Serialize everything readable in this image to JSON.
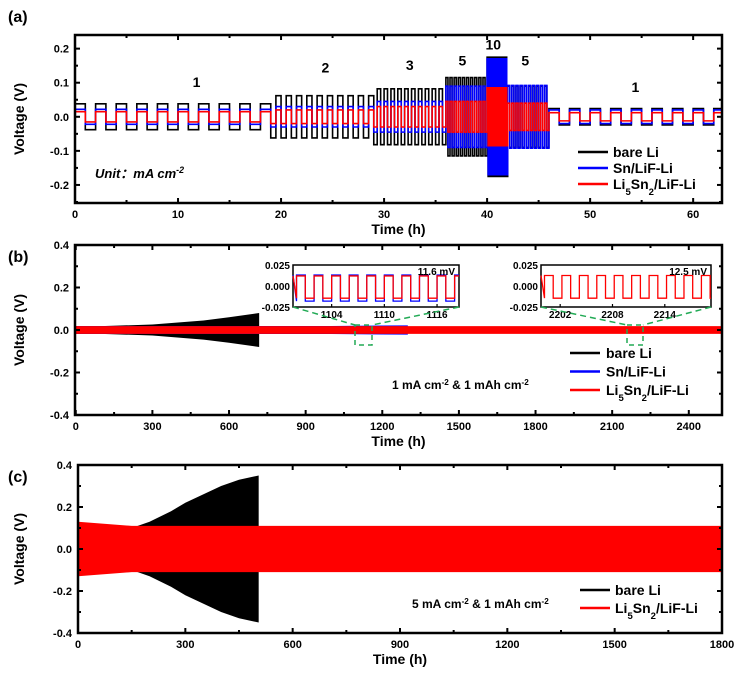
{
  "chart_data": [
    {
      "panel": "(a)",
      "type": "line",
      "xlabel": "Time (h)",
      "ylabel": "Voltage (V)",
      "xlim": [
        0,
        62.8
      ],
      "ylim": [
        -0.253,
        0.24
      ],
      "xticks": [
        0,
        10,
        20,
        30,
        40,
        50,
        60
      ],
      "xtick_labels": [
        "0",
        "10",
        "20",
        "30",
        "40",
        "50",
        "60"
      ],
      "yticks": [
        -0.2,
        -0.1,
        0.0,
        0.1,
        0.2
      ],
      "ytick_labels": [
        "-0.2",
        "-0.1",
        "0.0",
        "0.1",
        "0.2"
      ],
      "current_steps_mA_cm2": [
        {
          "start": 0,
          "end": 19,
          "current": 1
        },
        {
          "start": 19,
          "end": 29,
          "current": 2
        },
        {
          "start": 29,
          "end": 36,
          "current": 3
        },
        {
          "start": 36,
          "end": 40,
          "current": 5
        },
        {
          "start": 40,
          "end": 42,
          "current": 10
        },
        {
          "start": 42,
          "end": 46,
          "current": 5
        },
        {
          "start": 46,
          "end": 62.8,
          "current": 1
        }
      ],
      "series": [
        {
          "name": "bare Li",
          "color": "#000000",
          "amplitudes_V": [
            0.038,
            0.062,
            0.082,
            0.115,
            0.175,
            0.09,
            0.024
          ]
        },
        {
          "name": "Sn/LiF-Li",
          "color": "#0000ff",
          "amplitudes_V": [
            0.022,
            0.03,
            0.045,
            0.09,
            0.17,
            0.092,
            0.02
          ]
        },
        {
          "name": "Li5Sn2/LiF-Li",
          "color": "#ff0000",
          "amplitudes_V": [
            0.015,
            0.02,
            0.03,
            0.045,
            0.085,
            0.04,
            0.012
          ]
        }
      ],
      "annotations": [
        {
          "text": "1",
          "x": 11.8,
          "y": 0.088
        },
        {
          "text": "2",
          "x": 24.3,
          "y": 0.13
        },
        {
          "text": "3",
          "x": 32.5,
          "y": 0.138
        },
        {
          "text": "5",
          "x": 37.6,
          "y": 0.15
        },
        {
          "text": "10",
          "x": 40.6,
          "y": 0.197
        },
        {
          "text": "5",
          "x": 43.7,
          "y": 0.15
        },
        {
          "text": "1",
          "x": 54.4,
          "y": 0.072
        }
      ],
      "note": "Unit：mA cm-2",
      "legend": "bottom-right"
    },
    {
      "panel": "(b)",
      "type": "line",
      "xlabel": "Time (h)",
      "ylabel": "Voltage (V)",
      "xlim": [
        -3,
        2530
      ],
      "ylim": [
        -0.4,
        0.4
      ],
      "xticks": [
        0,
        300,
        600,
        900,
        1200,
        1500,
        1800,
        2100,
        2400
      ],
      "xtick_labels": [
        "0",
        "300",
        "600",
        "900",
        "1200",
        "1500",
        "1800",
        "2100",
        "2400"
      ],
      "yticks": [
        -0.4,
        -0.2,
        0.0,
        0.2,
        0.4
      ],
      "ytick_labels": [
        "-0.4",
        "-0.2",
        "0.0",
        "0.2",
        "0.4"
      ],
      "series": [
        {
          "name": "bare Li",
          "color": "#000000",
          "envelope": [
            [
              0,
              0.018
            ],
            [
              100,
              0.018
            ],
            [
              300,
              0.026
            ],
            [
              500,
              0.045
            ],
            [
              600,
              0.06
            ],
            [
              718,
              0.08
            ]
          ]
        },
        {
          "name": "Sn/LiF-Li",
          "color": "#0000ff",
          "envelope": [
            [
              0,
              0.018
            ],
            [
              1000,
              0.019
            ],
            [
              1300,
              0.022
            ]
          ]
        },
        {
          "name": "Li5Sn2/LiF-Li",
          "color": "#ff0000",
          "envelope": [
            [
              0,
              0.018
            ],
            [
              2530,
              0.018
            ]
          ]
        }
      ],
      "condition": "1 mA cm-2 & 1 mAh cm-2",
      "legend": "bottom-right",
      "insets": [
        {
          "xlim": [
            1099.6,
            1118.5
          ],
          "ylim": [
            -0.025,
            0.025
          ],
          "xticks": [
            1104,
            1110,
            1116
          ],
          "xtick_labels": [
            "1104",
            "1110",
            "1116"
          ],
          "yticks": [
            0.025,
            0.0,
            -0.025
          ],
          "ytick_labels": [
            "0.025",
            "0.000",
            "-0.025"
          ],
          "series": [
            {
              "color": "#0000ff",
              "high": 0.013,
              "low": -0.018
            },
            {
              "color": "#ff0000",
              "high": 0.012,
              "low": -0.0145
            }
          ],
          "annotation": "11.6 mV"
        },
        {
          "xlim": [
            2199.8,
            2219.3
          ],
          "ylim": [
            -0.025,
            0.025
          ],
          "xticks": [
            2202,
            2208,
            2214
          ],
          "xtick_labels": [
            "2202",
            "2208",
            "2214"
          ],
          "yticks": [
            0.025,
            0.0,
            -0.025
          ],
          "ytick_labels": [
            "0.025",
            "0.000",
            "-0.025"
          ],
          "series": [
            {
              "color": "#ff0000",
              "high": 0.0125,
              "low": -0.0145
            }
          ],
          "annotation": "12.5 mV"
        }
      ]
    },
    {
      "panel": "(c)",
      "type": "line",
      "xlabel": "Time (h)",
      "ylabel": "Voltage (V)",
      "xlim": [
        0,
        1800
      ],
      "ylim": [
        -0.4,
        0.4
      ],
      "xticks": [
        0,
        300,
        600,
        900,
        1200,
        1500,
        1800
      ],
      "xtick_labels": [
        "0",
        "300",
        "600",
        "900",
        "1200",
        "1500",
        "1800"
      ],
      "yticks": [
        -0.4,
        -0.2,
        0.0,
        0.2,
        0.4
      ],
      "ytick_labels": [
        "-0.4",
        "-0.2",
        "0.0",
        "0.2",
        "0.4"
      ],
      "series": [
        {
          "name": "bare Li",
          "color": "#000000",
          "envelope": [
            [
              0,
              0.12
            ],
            [
              150,
              0.1
            ],
            [
              200,
              0.13
            ],
            [
              260,
              0.18
            ],
            [
              300,
              0.22
            ],
            [
              350,
              0.26
            ],
            [
              400,
              0.3
            ],
            [
              450,
              0.33
            ],
            [
              505,
              0.35
            ]
          ]
        },
        {
          "name": "Li5Sn2/LiF-Li",
          "color": "#ff0000",
          "envelope": [
            [
              0,
              0.13
            ],
            [
              150,
              0.11
            ],
            [
              1800,
              0.11
            ]
          ]
        }
      ],
      "condition": "5 mA cm-2 & 1 mAh cm-2",
      "legend": "bottom-right"
    }
  ]
}
